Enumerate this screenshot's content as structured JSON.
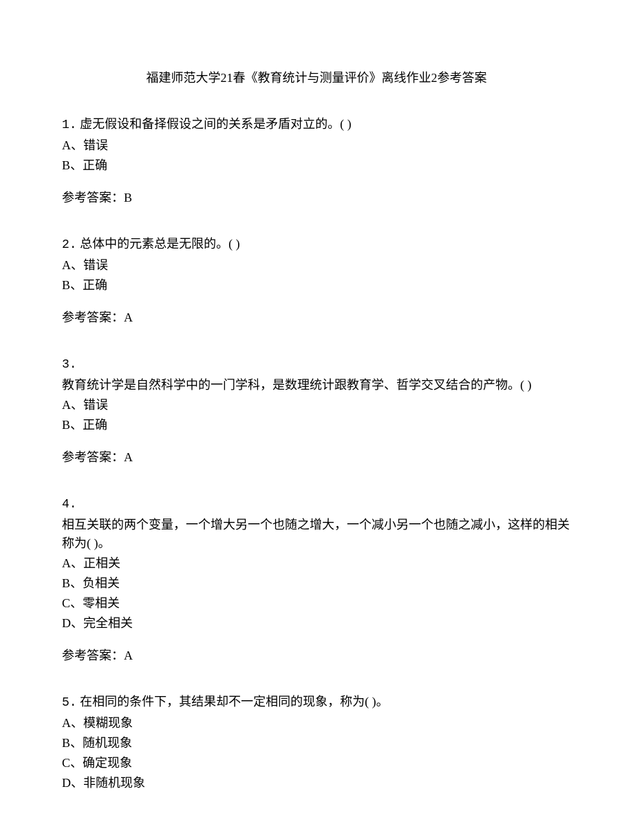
{
  "title": "福建师范大学21春《教育统计与测量评价》离线作业2参考答案",
  "questions": [
    {
      "number": "1.",
      "text": "虚无假设和备择假设之间的关系是矛盾对立的。(  )",
      "options": [
        "A、错误",
        "B、正确"
      ],
      "answer": "参考答案：B"
    },
    {
      "number": "2.",
      "text": "总体中的元素总是无限的。(  )",
      "options": [
        "A、错误",
        "B、正确"
      ],
      "answer": "参考答案：A"
    },
    {
      "number": "3.",
      "text": "教育统计学是自然科学中的一门学科，是数理统计跟教育学、哲学交叉结合的产物。(  )",
      "options": [
        "A、错误",
        "B、正确"
      ],
      "answer": "参考答案：A"
    },
    {
      "number": "4.",
      "text": "相互关联的两个变量，一个增大另一个也随之增大，一个减小另一个也随之减小，这样的相关称为(  )。",
      "options": [
        "A、正相关",
        "B、负相关",
        "C、零相关",
        "D、完全相关"
      ],
      "answer": "参考答案：A"
    },
    {
      "number": "5.",
      "text": "在相同的条件下，其结果却不一定相同的现象，称为(  )。",
      "options": [
        "A、模糊现象",
        "B、随机现象",
        "C、确定现象",
        "D、非随机现象"
      ],
      "answer": ""
    }
  ]
}
